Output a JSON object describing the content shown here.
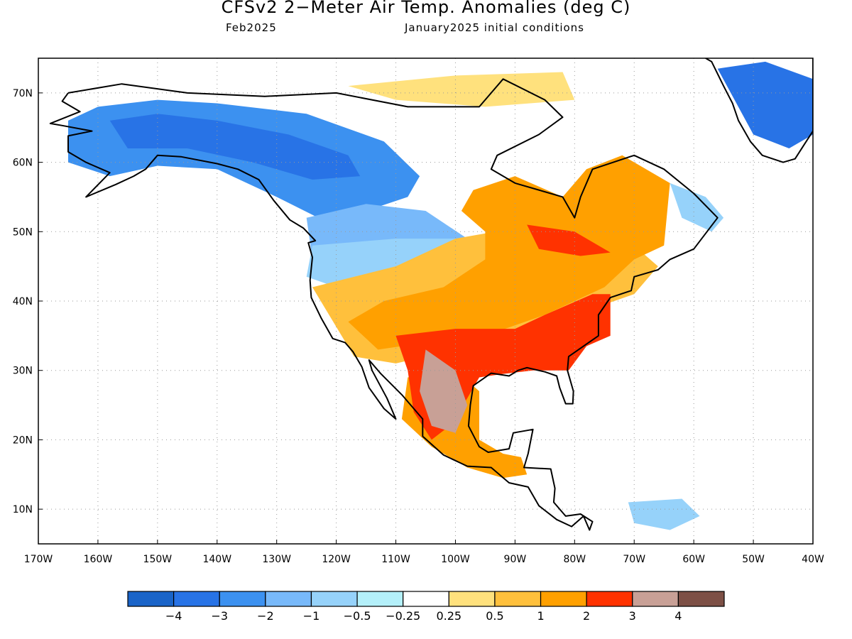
{
  "title": "CFSv2 2−Meter Air Temp. Anomalies (deg C)",
  "subtitle_left": "Feb2025",
  "subtitle_right": "January2025 initial conditions",
  "map": {
    "lon_range": [
      -170,
      -40
    ],
    "lat_range": [
      5,
      75
    ],
    "lon_ticks": [
      {
        "value": -170,
        "label": "170W"
      },
      {
        "value": -160,
        "label": "160W"
      },
      {
        "value": -150,
        "label": "150W"
      },
      {
        "value": -140,
        "label": "140W"
      },
      {
        "value": -130,
        "label": "130W"
      },
      {
        "value": -120,
        "label": "120W"
      },
      {
        "value": -110,
        "label": "110W"
      },
      {
        "value": -100,
        "label": "100W"
      },
      {
        "value": -90,
        "label": "90W"
      },
      {
        "value": -80,
        "label": "80W"
      },
      {
        "value": -70,
        "label": "70W"
      },
      {
        "value": -60,
        "label": "60W"
      },
      {
        "value": -50,
        "label": "50W"
      },
      {
        "value": -40,
        "label": "40W"
      }
    ],
    "lat_ticks": [
      {
        "value": 70,
        "label": "70N"
      },
      {
        "value": 60,
        "label": "60N"
      },
      {
        "value": 50,
        "label": "50N"
      },
      {
        "value": 40,
        "label": "40N"
      },
      {
        "value": 30,
        "label": "30N"
      },
      {
        "value": 20,
        "label": "20N"
      },
      {
        "value": 10,
        "label": "10N"
      }
    ],
    "grid": true
  },
  "colorbar": {
    "colors": [
      "#1a64c8",
      "#2873e6",
      "#3c91f0",
      "#78b9fa",
      "#96d2fa",
      "#b4f0fa",
      "#ffffff",
      "#ffe17d",
      "#ffc03c",
      "#ffa000",
      "#ff3200",
      "#c8a096",
      "#7d5046"
    ],
    "labels": [
      "−4",
      "−3",
      "−2",
      "−1",
      "−0.5",
      "−0.25",
      "0.25",
      "0.5",
      "1",
      "2",
      "3",
      "4"
    ]
  },
  "anomaly_regions": [
    {
      "level": "-2",
      "color": "#3c91f0",
      "points": [
        [
          -165,
          66
        ],
        [
          -160,
          68
        ],
        [
          -150,
          69
        ],
        [
          -140,
          68.5
        ],
        [
          -125,
          67
        ],
        [
          -112,
          63
        ],
        [
          -106,
          58
        ],
        [
          -108,
          55
        ],
        [
          -115,
          53
        ],
        [
          -123,
          52
        ],
        [
          -130,
          55
        ],
        [
          -140,
          59
        ],
        [
          -150,
          59.5
        ],
        [
          -158,
          58
        ],
        [
          -165,
          60
        ]
      ]
    },
    {
      "level": "-3",
      "color": "#2873e6",
      "points": [
        [
          -158,
          66
        ],
        [
          -150,
          67
        ],
        [
          -140,
          66
        ],
        [
          -128,
          64
        ],
        [
          -118,
          61
        ],
        [
          -116,
          58
        ],
        [
          -124,
          57.5
        ],
        [
          -134,
          60
        ],
        [
          -145,
          62
        ],
        [
          -155,
          62
        ]
      ]
    },
    {
      "level": "-3",
      "color": "#2873e6",
      "points": [
        [
          -56,
          73.5
        ],
        [
          -48,
          74.5
        ],
        [
          -40,
          72
        ],
        [
          -40,
          64
        ],
        [
          -44,
          62
        ],
        [
          -50,
          64
        ]
      ]
    },
    {
      "level": "-1",
      "color": "#78b9fa",
      "points": [
        [
          -125,
          52
        ],
        [
          -115,
          54
        ],
        [
          -105,
          53
        ],
        [
          -98,
          49
        ],
        [
          -108,
          46
        ],
        [
          -118,
          45
        ],
        [
          -124,
          46
        ]
      ]
    },
    {
      "level": "-0.5",
      "color": "#96d2fa",
      "points": [
        [
          -124,
          48
        ],
        [
          -110,
          49
        ],
        [
          -99,
          49
        ],
        [
          -102,
          46
        ],
        [
          -112,
          44
        ],
        [
          -120,
          42
        ],
        [
          -125,
          43.5
        ]
      ]
    },
    {
      "level": "-0.5",
      "color": "#96d2fa",
      "points": [
        [
          -64,
          57
        ],
        [
          -58,
          55
        ],
        [
          -55,
          52
        ],
        [
          -57,
          50
        ],
        [
          -62,
          52
        ]
      ]
    },
    {
      "level": "-0.5",
      "color": "#96d2fa",
      "points": [
        [
          -71,
          11
        ],
        [
          -62,
          11.5
        ],
        [
          -59,
          9
        ],
        [
          -64,
          7
        ],
        [
          -70,
          8
        ]
      ]
    },
    {
      "level": "0.5",
      "color": "#ffe17d",
      "points": [
        [
          -118,
          71
        ],
        [
          -100,
          72.5
        ],
        [
          -82,
          73
        ],
        [
          -80,
          69
        ],
        [
          -95,
          68
        ],
        [
          -110,
          69
        ]
      ]
    },
    {
      "level": "1",
      "color": "#ffc03c",
      "points": [
        [
          -124,
          42
        ],
        [
          -110,
          45
        ],
        [
          -100,
          49
        ],
        [
          -90,
          50.5
        ],
        [
          -80,
          50
        ],
        [
          -70,
          48
        ],
        [
          -66,
          45
        ],
        [
          -70,
          41
        ],
        [
          -80,
          38
        ],
        [
          -90,
          35
        ],
        [
          -100,
          33
        ],
        [
          -110,
          31
        ],
        [
          -117,
          32
        ]
      ]
    },
    {
      "level": "2",
      "color": "#ffa000",
      "points": [
        [
          -97,
          56
        ],
        [
          -90,
          58
        ],
        [
          -82,
          55
        ],
        [
          -78,
          59
        ],
        [
          -72,
          61
        ],
        [
          -64,
          57
        ],
        [
          -65,
          48
        ],
        [
          -70,
          46
        ],
        [
          -75,
          42
        ],
        [
          -85,
          38
        ],
        [
          -95,
          35
        ],
        [
          -105,
          34
        ],
        [
          -113,
          33
        ],
        [
          -118,
          37
        ],
        [
          -112,
          40
        ],
        [
          -102,
          42
        ],
        [
          -95,
          46
        ],
        [
          -95,
          50
        ],
        [
          -99,
          53
        ]
      ]
    },
    {
      "level": "2",
      "color": "#ffa000",
      "points": [
        [
          -108,
          29
        ],
        [
          -100,
          30
        ],
        [
          -96,
          27
        ],
        [
          -96,
          20
        ],
        [
          -92,
          18
        ],
        [
          -89,
          17.5
        ],
        [
          -88,
          15
        ],
        [
          -92,
          14.5
        ],
        [
          -98,
          16
        ],
        [
          -104,
          19
        ],
        [
          -109,
          23
        ]
      ]
    },
    {
      "level": "3",
      "color": "#ff3200",
      "points": [
        [
          -110,
          35
        ],
        [
          -100,
          36
        ],
        [
          -90,
          36
        ],
        [
          -85,
          38
        ],
        [
          -77,
          41
        ],
        [
          -74,
          41
        ],
        [
          -74,
          35
        ],
        [
          -78,
          33.5
        ],
        [
          -81,
          30
        ],
        [
          -87,
          30
        ],
        [
          -92,
          29.5
        ],
        [
          -96,
          29
        ],
        [
          -98,
          26
        ],
        [
          -101,
          22
        ],
        [
          -104,
          20
        ],
        [
          -107,
          24
        ],
        [
          -108,
          30
        ]
      ]
    },
    {
      "level": "3",
      "color": "#ff3200",
      "points": [
        [
          -88,
          51
        ],
        [
          -80,
          50
        ],
        [
          -74,
          47
        ],
        [
          -79,
          46.5
        ],
        [
          -86,
          47.5
        ]
      ]
    },
    {
      "level": "4",
      "color": "#c8a096",
      "points": [
        [
          -105,
          33
        ],
        [
          -100,
          30
        ],
        [
          -98,
          25
        ],
        [
          -100,
          21
        ],
        [
          -104,
          22
        ],
        [
          -106,
          27
        ]
      ]
    }
  ],
  "coastline_points": [
    [
      -165,
      70
    ],
    [
      -156,
      71.3
    ],
    [
      -145,
      70
    ],
    [
      -132,
      69.5
    ],
    [
      -120,
      70
    ],
    [
      -108,
      68
    ],
    [
      -96,
      68
    ],
    [
      -92,
      72
    ],
    [
      -85,
      69
    ],
    [
      -82,
      66.5
    ],
    [
      -86,
      64
    ],
    [
      -93,
      61
    ],
    [
      -94,
      59
    ],
    [
      -90,
      57
    ],
    [
      -82,
      55
    ],
    [
      -80,
      52
    ],
    [
      -79,
      55
    ],
    [
      -77,
      59
    ],
    [
      -70,
      61
    ],
    [
      -65,
      59
    ],
    [
      -60,
      55.5
    ],
    [
      -56,
      52
    ],
    [
      -60,
      47.5
    ],
    [
      -64,
      46
    ],
    [
      -66,
      44.5
    ],
    [
      -70,
      43.5
    ],
    [
      -70.5,
      41.5
    ],
    [
      -74,
      40.5
    ],
    [
      -76,
      38
    ],
    [
      -76,
      35
    ],
    [
      -78,
      33.8
    ],
    [
      -81,
      32
    ],
    [
      -81.2,
      30
    ],
    [
      -80.2,
      27
    ],
    [
      -80.3,
      25.2
    ],
    [
      -81.5,
      25.2
    ],
    [
      -82.5,
      27.5
    ],
    [
      -83,
      29.2
    ],
    [
      -85,
      29.8
    ],
    [
      -88,
      30.4
    ],
    [
      -89.5,
      30
    ],
    [
      -91,
      29.2
    ],
    [
      -94,
      29.6
    ],
    [
      -97,
      27.8
    ],
    [
      -97.5,
      25
    ],
    [
      -97.8,
      22
    ],
    [
      -96,
      19
    ],
    [
      -94.5,
      18.2
    ],
    [
      -91,
      18.7
    ],
    [
      -90.3,
      21
    ],
    [
      -87,
      21.5
    ],
    [
      -87.8,
      18
    ],
    [
      -88.5,
      16
    ],
    [
      -84,
      15.8
    ],
    [
      -83.3,
      13
    ],
    [
      -83.5,
      11
    ],
    [
      -81.5,
      9
    ],
    [
      -79,
      9.3
    ],
    [
      -77,
      8.2
    ],
    [
      -77.5,
      7
    ],
    [
      -78.5,
      9
    ],
    [
      -80.5,
      7.5
    ],
    [
      -83,
      8.5
    ],
    [
      -86,
      10.5
    ],
    [
      -87.8,
      13.2
    ],
    [
      -91,
      13.8
    ],
    [
      -94,
      16
    ],
    [
      -98,
      16.2
    ],
    [
      -102,
      17.8
    ],
    [
      -105.5,
      20.5
    ],
    [
      -105.5,
      23
    ],
    [
      -109,
      26.5
    ],
    [
      -112.5,
      29.5
    ],
    [
      -114.5,
      31.5
    ],
    [
      -114,
      30
    ],
    [
      -111.5,
      26
    ],
    [
      -110,
      23
    ],
    [
      -112,
      24.5
    ],
    [
      -114.5,
      27.5
    ],
    [
      -115.7,
      30.5
    ],
    [
      -117.2,
      32.7
    ],
    [
      -118.5,
      34
    ],
    [
      -120.6,
      34.6
    ],
    [
      -122.5,
      37.5
    ],
    [
      -124.2,
      40.5
    ],
    [
      -124.4,
      43
    ],
    [
      -124,
      46.3
    ],
    [
      -124.7,
      48.4
    ],
    [
      -123.5,
      48.7
    ],
    [
      -125.5,
      50.5
    ],
    [
      -127.8,
      51.7
    ],
    [
      -130.5,
      54.5
    ],
    [
      -133,
      57.5
    ],
    [
      -136.5,
      59
    ],
    [
      -140,
      59.8
    ],
    [
      -146,
      60.8
    ],
    [
      -150,
      61
    ],
    [
      -152,
      59
    ],
    [
      -154,
      58
    ],
    [
      -157,
      56.8
    ],
    [
      -162,
      55
    ],
    [
      -158,
      58.5
    ],
    [
      -162,
      60
    ],
    [
      -165,
      61.5
    ],
    [
      -165,
      63.8
    ],
    [
      -161,
      64.5
    ],
    [
      -166,
      65.3
    ],
    [
      -168,
      65.6
    ],
    [
      -163,
      67.3
    ],
    [
      -166,
      68.8
    ],
    [
      -165,
      70
    ]
  ],
  "greenland_points": [
    [
      -60,
      76
    ],
    [
      -57,
      74.5
    ],
    [
      -55,
      71
    ],
    [
      -53.5,
      68.5
    ],
    [
      -52.5,
      66
    ],
    [
      -50.5,
      63
    ],
    [
      -48.5,
      61
    ],
    [
      -45,
      60
    ],
    [
      -43,
      60.5
    ],
    [
      -41.5,
      62.5
    ],
    [
      -40,
      64.5
    ],
    [
      -40,
      76
    ]
  ]
}
